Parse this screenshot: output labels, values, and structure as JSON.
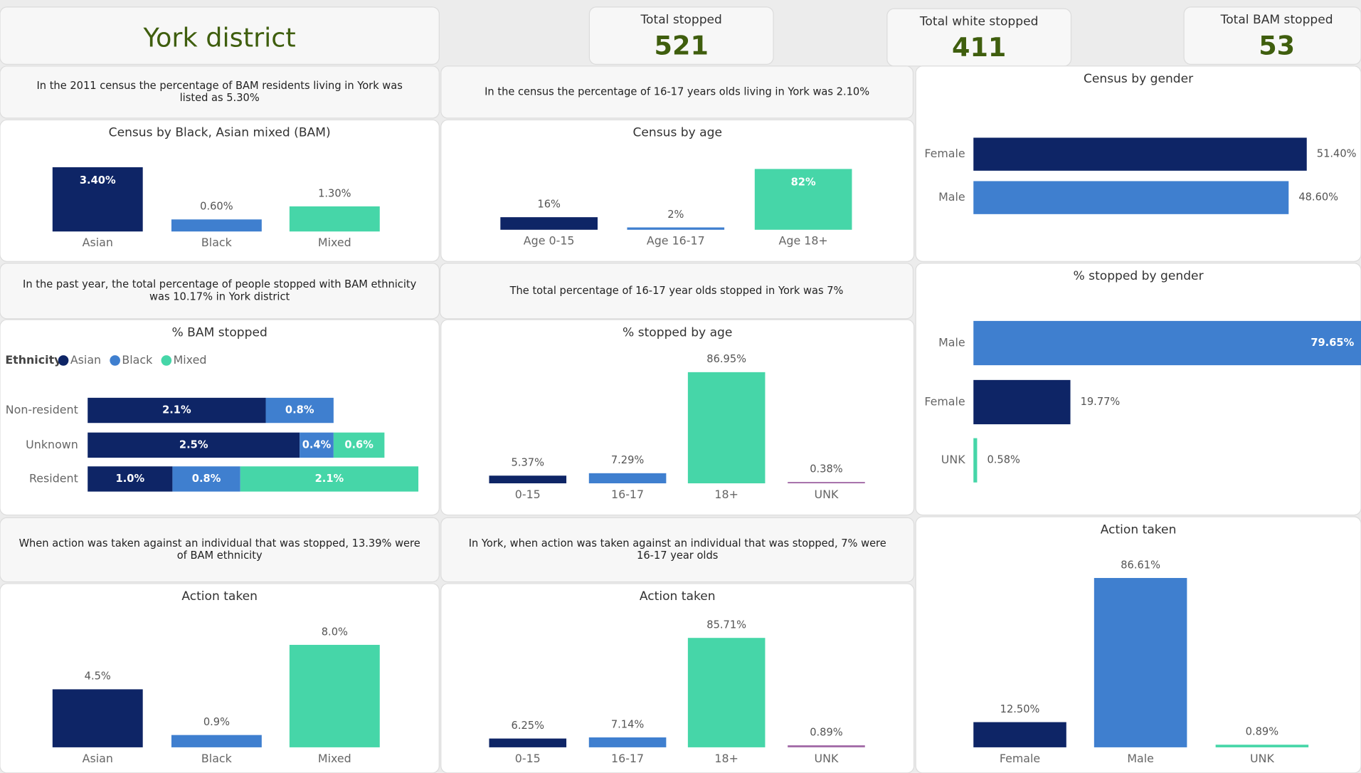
{
  "header": {
    "title": "York district"
  },
  "kpis": [
    {
      "label": "Total stopped",
      "value": 521
    },
    {
      "label": "Total white stopped",
      "value": 411
    },
    {
      "label": "Total BAM stopped",
      "value": 53
    }
  ],
  "notes": [
    {
      "lines": [
        "In the 2011 census the percentage of BAM residents living in York was",
        "listed as 5.30%"
      ]
    },
    {
      "lines": [
        "In the census the percentage of 16-17 years olds living in York was 2.10%"
      ]
    },
    {
      "lines": [
        "In the past year, the total percentage of people stopped with BAM ethnicity",
        "was 10.17% in York district"
      ]
    },
    {
      "lines": [
        "The total percentage of 16-17 year olds stopped in York was 7%"
      ]
    },
    {
      "lines": [
        "When action was taken against an individual that was stopped, 13.39% were",
        "of BAM ethnicity"
      ]
    },
    {
      "lines": [
        "In York, when action was taken against an individual that was stopped, 7% were",
        "16-17 year olds"
      ]
    }
  ],
  "chart_data": [
    {
      "type": "bar",
      "title": "Census by Black, Asian mixed (BAM)",
      "categories": [
        "Asian",
        "Black",
        "Mixed"
      ],
      "values": [
        3.4,
        0.6,
        1.3
      ],
      "value_labels": [
        "3.40%",
        "0.60%",
        "1.30%"
      ],
      "colors": [
        "#0e2566",
        "#3f7fcf",
        "#46d6a8"
      ]
    },
    {
      "type": "bar",
      "title": "Census by age",
      "categories": [
        "Age 0-15",
        "Age 16-17",
        "Age 18+"
      ],
      "values": [
        16,
        2,
        82
      ],
      "value_labels": [
        "16%",
        "2%",
        "82%"
      ],
      "colors": [
        "#0e2566",
        "#3f7fcf",
        "#46d6a8"
      ]
    },
    {
      "type": "hbar",
      "title": "Census by gender",
      "categories": [
        "Female",
        "Male"
      ],
      "values": [
        51.4,
        48.6
      ],
      "value_labels": [
        "51.40%",
        "48.60%"
      ],
      "colors": [
        "#0e2566",
        "#3f7fcf"
      ]
    },
    {
      "type": "stacked_hbar",
      "title": "% BAM stopped",
      "legend_title": "Ethnicity",
      "categories": [
        "Non-resident",
        "Unknown",
        "Resident"
      ],
      "series": [
        {
          "name": "Asian",
          "color": "#0e2566",
          "values": [
            2.1,
            2.5,
            1.0
          ],
          "value_labels": [
            "2.1%",
            "2.5%",
            "1.0%"
          ]
        },
        {
          "name": "Black",
          "color": "#3f7fcf",
          "values": [
            0.8,
            0.4,
            0.8
          ],
          "value_labels": [
            "0.8%",
            "0.4%",
            "0.8%"
          ]
        },
        {
          "name": "Mixed",
          "color": "#46d6a8",
          "values": [
            null,
            0.6,
            2.1
          ],
          "value_labels": [
            null,
            "0.6%",
            "2.1%"
          ]
        }
      ]
    },
    {
      "type": "bar",
      "title": "% stopped by age",
      "categories": [
        "0-15",
        "16-17",
        "18+",
        "UNK"
      ],
      "values": [
        5.37,
        7.29,
        86.95,
        0.38
      ],
      "value_labels": [
        "5.37%",
        "7.29%",
        "86.95%",
        "0.38%"
      ],
      "colors": [
        "#0e2566",
        "#3f7fcf",
        "#46d6a8",
        "#a26aa6"
      ]
    },
    {
      "type": "hbar",
      "title": "% stopped by gender",
      "categories": [
        "Male",
        "Female",
        "UNK"
      ],
      "values": [
        79.65,
        19.77,
        0.58
      ],
      "value_labels": [
        "79.65%",
        "19.77%",
        "0.58%"
      ],
      "colors": [
        "#3f7fcf",
        "#0e2566",
        "#46d6a8"
      ]
    },
    {
      "type": "bar",
      "title": "Action taken",
      "categories": [
        "Asian",
        "Black",
        "Mixed"
      ],
      "values": [
        4.5,
        0.9,
        8.0
      ],
      "value_labels": [
        "4.5%",
        "0.9%",
        "8.0%"
      ],
      "colors": [
        "#0e2566",
        "#3f7fcf",
        "#46d6a8"
      ]
    },
    {
      "type": "bar",
      "title": "Action taken",
      "categories": [
        "0-15",
        "16-17",
        "18+",
        "UNK"
      ],
      "values": [
        6.25,
        7.14,
        85.71,
        0.89
      ],
      "value_labels": [
        "6.25%",
        "7.14%",
        "85.71%",
        "0.89%"
      ],
      "colors": [
        "#0e2566",
        "#3f7fcf",
        "#46d6a8",
        "#a26aa6"
      ]
    },
    {
      "type": "bar",
      "title": "Action taken",
      "categories": [
        "Female",
        "Male",
        "UNK"
      ],
      "values": [
        12.5,
        86.61,
        0.89
      ],
      "value_labels": [
        "12.50%",
        "86.61%",
        "0.89%"
      ],
      "colors": [
        "#0e2566",
        "#3f7fcf",
        "#46d6a8"
      ]
    }
  ]
}
